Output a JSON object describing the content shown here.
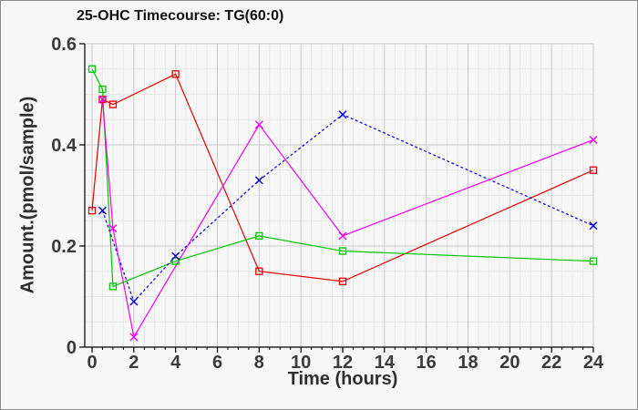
{
  "figure": {
    "background": "#f7f7f7",
    "border_color": "#8c8c8c"
  },
  "chart_data": {
    "type": "line",
    "title": "25-OHC Timecourse: TG(60:0)",
    "xlabel": "Time (hours)",
    "ylabel": "Amount.(pmol/sample)",
    "xlim": [
      0,
      24
    ],
    "ylim": [
      0,
      0.6
    ],
    "x_major_ticks": [
      0,
      2,
      4,
      6,
      8,
      10,
      12,
      14,
      16,
      18,
      20,
      22,
      24
    ],
    "y_major_ticks": [
      0,
      0.2,
      0.4,
      0.6
    ],
    "y_tick_labels": [
      "0",
      "0.2",
      "0.4",
      "0.6"
    ],
    "x_minor_step": 0.5,
    "y_minor_step": 0.05,
    "grid": true,
    "legend_position": "none",
    "colors": {
      "grid_major": "#c9c9c9",
      "grid_minor": "#e7e7e7",
      "axis": "#000000",
      "tick_label": "#3a3a3a",
      "title": "#111111"
    },
    "series": [
      {
        "name": "red-squares",
        "color": "#e00000",
        "marker": "square",
        "line": "solid",
        "points": [
          [
            0,
            0.27
          ],
          [
            0.5,
            0.49
          ],
          [
            1,
            0.48
          ],
          [
            4,
            0.54
          ],
          [
            8,
            0.15
          ],
          [
            12,
            0.13
          ],
          [
            24,
            0.35
          ]
        ]
      },
      {
        "name": "green-squares",
        "color": "#00c800",
        "marker": "square",
        "line": "solid",
        "points": [
          [
            0,
            0.55
          ],
          [
            0.5,
            0.51
          ],
          [
            1,
            0.12
          ],
          [
            4,
            0.17
          ],
          [
            8,
            0.22
          ],
          [
            12,
            0.19
          ],
          [
            24,
            0.17
          ]
        ]
      },
      {
        "name": "blue-x",
        "color": "#0000d0",
        "marker": "x",
        "line": "dashed",
        "points": [
          [
            0.5,
            0.27
          ],
          [
            2,
            0.09
          ],
          [
            4,
            0.18
          ],
          [
            8,
            0.33
          ],
          [
            12,
            0.46
          ],
          [
            24,
            0.24
          ]
        ]
      },
      {
        "name": "magenta-x",
        "color": "#f000f0",
        "marker": "x",
        "line": "solid",
        "points": [
          [
            0.5,
            0.49
          ],
          [
            1,
            0.235
          ],
          [
            2,
            0.02
          ],
          [
            8,
            0.44
          ],
          [
            12,
            0.22
          ],
          [
            24,
            0.41
          ]
        ]
      }
    ]
  }
}
